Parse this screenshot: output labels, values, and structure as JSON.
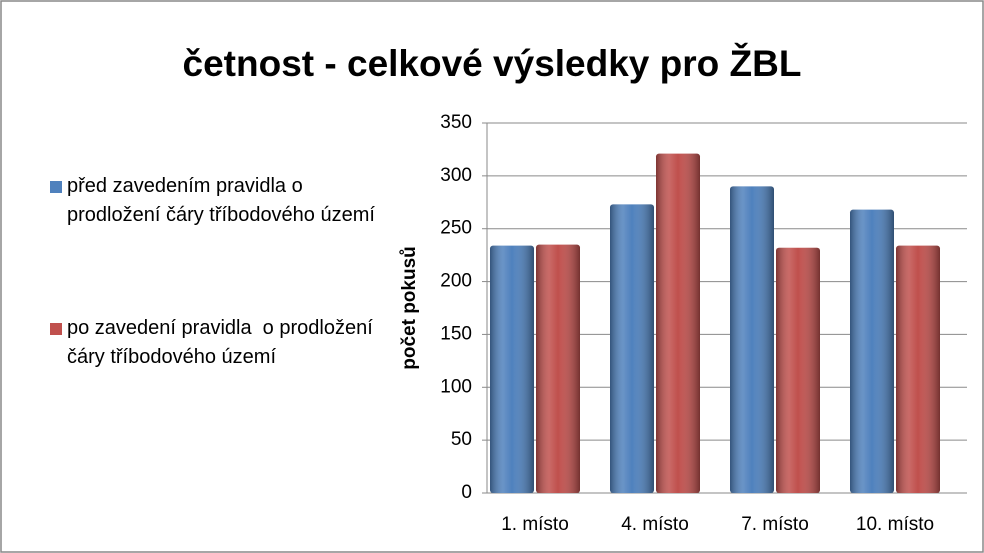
{
  "chart_data": {
    "type": "bar",
    "title": "četnost - celkové výsledky pro ŽBL",
    "y_label": "počet pokusů",
    "categories": [
      "1. místo",
      "4. místo",
      "7. místo",
      "10. místo"
    ],
    "series": [
      {
        "name": "před zavedením pravidla o prodložení čáry tříbodového území",
        "color": "#4f81bd",
        "values": [
          234,
          273,
          290,
          268
        ]
      },
      {
        "name": "po zavedení pravidla  o prodložení čáry tříbodového území",
        "color": "#c0504d",
        "values": [
          235,
          321,
          232,
          234
        ]
      }
    ],
    "ylim": [
      0,
      350
    ],
    "yticks": [
      0,
      50,
      100,
      150,
      200,
      250,
      300,
      350
    ],
    "grid": true,
    "legend": "left"
  }
}
